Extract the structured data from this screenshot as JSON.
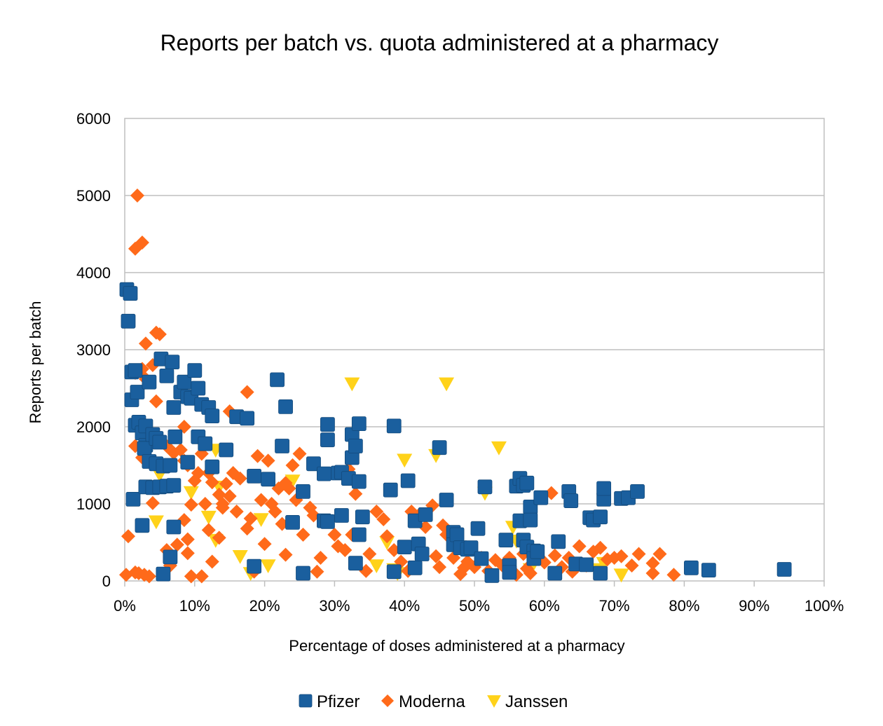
{
  "colors": {
    "pfizer": "#1a5f9e",
    "moderna": "#ff6a1a",
    "janssen": "#ffd21a",
    "grid": "#bfbfbf"
  },
  "chart_data": {
    "type": "scatter",
    "title": "Reports per batch vs. quota administered at a pharmacy",
    "xlabel": "Percentage of doses administered at a pharmacy",
    "ylabel": "Reports per batch",
    "xlim": [
      0,
      100
    ],
    "ylim": [
      0,
      6000
    ],
    "x_unit": "%",
    "x_ticks": [
      "0%",
      "10%",
      "20%",
      "30%",
      "40%",
      "50%",
      "60%",
      "70%",
      "80%",
      "90%",
      "100%"
    ],
    "y_ticks": [
      "0",
      "1000",
      "2000",
      "3000",
      "4000",
      "5000",
      "6000"
    ],
    "grid": "horizontal",
    "legend_position": "bottom",
    "series": [
      {
        "name": "Pfizer",
        "marker": "square",
        "points": [
          [
            0.3,
            3780
          ],
          [
            0.8,
            3730
          ],
          [
            0.5,
            3370
          ],
          [
            1.0,
            2710
          ],
          [
            1.5,
            2730
          ],
          [
            1.0,
            2350
          ],
          [
            1.8,
            2450
          ],
          [
            1.5,
            2020
          ],
          [
            2.0,
            2060
          ],
          [
            2.5,
            1920
          ],
          [
            3.0,
            2010
          ],
          [
            3.5,
            2580
          ],
          [
            3.0,
            1760
          ],
          [
            2.8,
            1720
          ],
          [
            1.2,
            1060
          ],
          [
            4.0,
            1900
          ],
          [
            4.5,
            1850
          ],
          [
            5.0,
            1800
          ],
          [
            5.2,
            2880
          ],
          [
            6.0,
            2660
          ],
          [
            6.8,
            2840
          ],
          [
            7.0,
            2250
          ],
          [
            8.0,
            2450
          ],
          [
            8.5,
            2580
          ],
          [
            9.0,
            2390
          ],
          [
            9.5,
            2370
          ],
          [
            10.0,
            2730
          ],
          [
            10.5,
            2500
          ],
          [
            11.0,
            2290
          ],
          [
            12.0,
            2250
          ],
          [
            12.5,
            2140
          ],
          [
            3.5,
            1550
          ],
          [
            4.5,
            1520
          ],
          [
            5.5,
            1490
          ],
          [
            6.5,
            1500
          ],
          [
            9.0,
            1540
          ],
          [
            3.0,
            1220
          ],
          [
            4.0,
            1210
          ],
          [
            5.0,
            1220
          ],
          [
            6.0,
            1230
          ],
          [
            7.0,
            1240
          ],
          [
            2.5,
            720
          ],
          [
            6.5,
            310
          ],
          [
            5.5,
            90
          ],
          [
            7.0,
            700
          ],
          [
            7.2,
            1870
          ],
          [
            10.5,
            1870
          ],
          [
            11.5,
            1780
          ],
          [
            12.5,
            1480
          ],
          [
            14.5,
            1700
          ],
          [
            16.0,
            2130
          ],
          [
            17.5,
            2110
          ],
          [
            21.8,
            2610
          ],
          [
            22.5,
            1750
          ],
          [
            23.0,
            2260
          ],
          [
            18.5,
            1360
          ],
          [
            20.5,
            1320
          ],
          [
            18.5,
            190
          ],
          [
            25.5,
            1160
          ],
          [
            25.5,
            100
          ],
          [
            24.0,
            760
          ],
          [
            27.0,
            1520
          ],
          [
            28.5,
            780
          ],
          [
            29.0,
            770
          ],
          [
            28.5,
            1390
          ],
          [
            29.0,
            2030
          ],
          [
            29.0,
            1830
          ],
          [
            30.5,
            1400
          ],
          [
            31.0,
            850
          ],
          [
            31.0,
            1410
          ],
          [
            32.0,
            1330
          ],
          [
            32.5,
            1900
          ],
          [
            32.5,
            1600
          ],
          [
            33.0,
            1750
          ],
          [
            33.5,
            2040
          ],
          [
            33.5,
            1290
          ],
          [
            34.0,
            830
          ],
          [
            33.0,
            230
          ],
          [
            33.5,
            600
          ],
          [
            38.0,
            1180
          ],
          [
            38.5,
            2010
          ],
          [
            38.5,
            120
          ],
          [
            40.0,
            440
          ],
          [
            40.5,
            1300
          ],
          [
            41.5,
            780
          ],
          [
            42.0,
            480
          ],
          [
            42.5,
            350
          ],
          [
            41.5,
            170
          ],
          [
            43.0,
            860
          ],
          [
            45.0,
            1730
          ],
          [
            46.0,
            1050
          ],
          [
            47.0,
            630
          ],
          [
            47.0,
            470
          ],
          [
            47.5,
            600
          ],
          [
            48.0,
            430
          ],
          [
            49.0,
            410
          ],
          [
            49.5,
            430
          ],
          [
            50.5,
            680
          ],
          [
            51.0,
            290
          ],
          [
            51.5,
            1220
          ],
          [
            52.5,
            70
          ],
          [
            54.5,
            530
          ],
          [
            55.0,
            200
          ],
          [
            55.0,
            110
          ],
          [
            56.0,
            1230
          ],
          [
            56.5,
            1330
          ],
          [
            57.0,
            1240
          ],
          [
            56.5,
            780
          ],
          [
            57.5,
            1270
          ],
          [
            58.0,
            960
          ],
          [
            57.0,
            530
          ],
          [
            57.5,
            440
          ],
          [
            58.0,
            790
          ],
          [
            58.5,
            390
          ],
          [
            58.5,
            290
          ],
          [
            59.0,
            380
          ],
          [
            59.5,
            1080
          ],
          [
            61.5,
            100
          ],
          [
            62.0,
            510
          ],
          [
            63.5,
            1160
          ],
          [
            63.8,
            1040
          ],
          [
            64.5,
            220
          ],
          [
            66.0,
            210
          ],
          [
            66.5,
            820
          ],
          [
            67.0,
            790
          ],
          [
            68.0,
            830
          ],
          [
            68.5,
            1060
          ],
          [
            68.5,
            1200
          ],
          [
            68.0,
            100
          ],
          [
            71.0,
            1070
          ],
          [
            72.0,
            1080
          ],
          [
            73.3,
            1160
          ],
          [
            81.0,
            170
          ],
          [
            83.5,
            140
          ],
          [
            94.3,
            150
          ]
        ]
      },
      {
        "name": "Moderna",
        "marker": "diamond",
        "points": [
          [
            1.8,
            5000
          ],
          [
            1.5,
            4310
          ],
          [
            2.5,
            4390
          ],
          [
            4.5,
            3220
          ],
          [
            5.0,
            3200
          ],
          [
            3.0,
            3080
          ],
          [
            4.0,
            2800
          ],
          [
            2.5,
            2750
          ],
          [
            1.5,
            2700
          ],
          [
            3.0,
            2620
          ],
          [
            4.5,
            2330
          ],
          [
            1.5,
            1750
          ],
          [
            2.5,
            1600
          ],
          [
            4.5,
            1800
          ],
          [
            6.0,
            1750
          ],
          [
            7.0,
            1660
          ],
          [
            8.5,
            2000
          ],
          [
            8.0,
            1700
          ],
          [
            8.5,
            1560
          ],
          [
            9.0,
            1500
          ],
          [
            10.0,
            1300
          ],
          [
            10.5,
            1400
          ],
          [
            11.0,
            1650
          ],
          [
            12.0,
            1400
          ],
          [
            12.5,
            1280
          ],
          [
            13.5,
            1120
          ],
          [
            14.0,
            1000
          ],
          [
            14.5,
            1260
          ],
          [
            15.0,
            2200
          ],
          [
            15.5,
            1400
          ],
          [
            16.5,
            1330
          ],
          [
            17.5,
            2450
          ],
          [
            13.5,
            560
          ],
          [
            14.0,
            950
          ],
          [
            15.0,
            1100
          ],
          [
            16.0,
            900
          ],
          [
            0.5,
            580
          ],
          [
            0.2,
            80
          ],
          [
            1.5,
            110
          ],
          [
            2.0,
            100
          ],
          [
            2.8,
            80
          ],
          [
            3.5,
            60
          ],
          [
            4.0,
            1010
          ],
          [
            6.0,
            400
          ],
          [
            6.5,
            200
          ],
          [
            7.5,
            470
          ],
          [
            8.5,
            790
          ],
          [
            9.0,
            540
          ],
          [
            9.0,
            360
          ],
          [
            9.5,
            990
          ],
          [
            9.5,
            60
          ],
          [
            11.0,
            60
          ],
          [
            12.0,
            660
          ],
          [
            12.5,
            250
          ],
          [
            11.5,
            1000
          ],
          [
            17.5,
            680
          ],
          [
            18.0,
            810
          ],
          [
            18.5,
            120
          ],
          [
            19.0,
            1620
          ],
          [
            19.5,
            1050
          ],
          [
            20.0,
            480
          ],
          [
            20.5,
            1560
          ],
          [
            21.0,
            1000
          ],
          [
            21.5,
            900
          ],
          [
            22.0,
            1200
          ],
          [
            22.5,
            740
          ],
          [
            23.0,
            1270
          ],
          [
            23.5,
            1200
          ],
          [
            23.0,
            340
          ],
          [
            24.0,
            1500
          ],
          [
            24.5,
            1050
          ],
          [
            25.0,
            1650
          ],
          [
            25.5,
            600
          ],
          [
            26.5,
            950
          ],
          [
            27.0,
            850
          ],
          [
            27.5,
            120
          ],
          [
            28.0,
            300
          ],
          [
            30.0,
            600
          ],
          [
            30.5,
            450
          ],
          [
            31.5,
            400
          ],
          [
            32.0,
            1450
          ],
          [
            32.5,
            600
          ],
          [
            33.0,
            1130
          ],
          [
            34.5,
            130
          ],
          [
            35.0,
            350
          ],
          [
            36.0,
            900
          ],
          [
            37.0,
            800
          ],
          [
            37.5,
            580
          ],
          [
            38.5,
            400
          ],
          [
            39.5,
            250
          ],
          [
            40.5,
            130
          ],
          [
            41.0,
            900
          ],
          [
            42.0,
            850
          ],
          [
            43.0,
            700
          ],
          [
            44.0,
            980
          ],
          [
            44.5,
            320
          ],
          [
            45.0,
            180
          ],
          [
            45.5,
            720
          ],
          [
            46.0,
            600
          ],
          [
            47.0,
            300
          ],
          [
            48.0,
            90
          ],
          [
            48.5,
            170
          ],
          [
            49.0,
            250
          ],
          [
            50.0,
            180
          ],
          [
            51.0,
            300
          ],
          [
            52.0,
            130
          ],
          [
            53.0,
            270
          ],
          [
            54.0,
            200
          ],
          [
            55.0,
            300
          ],
          [
            56.0,
            80
          ],
          [
            57.0,
            350
          ],
          [
            57.5,
            160
          ],
          [
            58.0,
            100
          ],
          [
            59.0,
            320
          ],
          [
            60.0,
            240
          ],
          [
            61.0,
            1140
          ],
          [
            61.5,
            330
          ],
          [
            62.5,
            180
          ],
          [
            63.5,
            300
          ],
          [
            64.0,
            120
          ],
          [
            65.0,
            450
          ],
          [
            66.0,
            200
          ],
          [
            67.0,
            380
          ],
          [
            68.0,
            430
          ],
          [
            69.0,
            280
          ],
          [
            70.0,
            300
          ],
          [
            71.0,
            320
          ],
          [
            72.5,
            200
          ],
          [
            73.5,
            350
          ],
          [
            75.5,
            230
          ],
          [
            75.5,
            100
          ],
          [
            76.5,
            350
          ],
          [
            78.5,
            80
          ]
        ]
      },
      {
        "name": "Janssen",
        "marker": "triangle-down",
        "points": [
          [
            4.5,
            770
          ],
          [
            5.0,
            1380
          ],
          [
            9.5,
            1150
          ],
          [
            12.0,
            830
          ],
          [
            13.0,
            530
          ],
          [
            13.0,
            1700
          ],
          [
            13.5,
            1220
          ],
          [
            16.5,
            320
          ],
          [
            18.0,
            100
          ],
          [
            19.5,
            800
          ],
          [
            20.5,
            200
          ],
          [
            24.0,
            1300
          ],
          [
            32.5,
            2560
          ],
          [
            46.0,
            2560
          ],
          [
            40.0,
            1570
          ],
          [
            44.5,
            1630
          ],
          [
            53.5,
            1730
          ],
          [
            51.5,
            1140
          ],
          [
            37.5,
            500
          ],
          [
            38.5,
            150
          ],
          [
            36.0,
            200
          ],
          [
            39.0,
            100
          ],
          [
            55.5,
            700
          ],
          [
            56.0,
            520
          ],
          [
            58.0,
            150
          ],
          [
            67.5,
            150
          ],
          [
            68.5,
            230
          ],
          [
            71.0,
            80
          ]
        ]
      }
    ]
  }
}
